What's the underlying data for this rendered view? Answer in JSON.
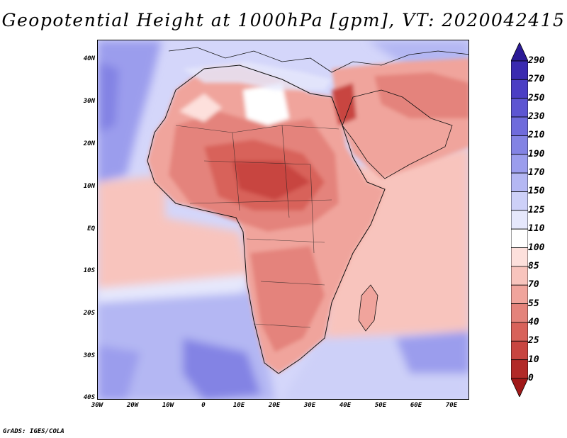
{
  "title": "Geopotential Height at 1000hPa [gpm], VT: 2020042415",
  "credit": "GrADS: IGES/COLA",
  "map": {
    "lon_range": [
      -30,
      75
    ],
    "lat_range": [
      -40,
      45
    ],
    "lat_labels": [
      "40N",
      "30N",
      "20N",
      "10N",
      "EQ",
      "10S",
      "20S",
      "30S",
      "40S"
    ],
    "lon_labels": [
      "30W",
      "20W",
      "10W",
      "0",
      "10E",
      "20E",
      "30E",
      "40E",
      "50E",
      "60E",
      "70E"
    ],
    "regions": {
      "ocean_north_atlantic": "light blue-violet",
      "africa_interior": "red (low heights)",
      "southern_ocean": "blue-violet (high heights)",
      "indian_ocean": "pink"
    }
  },
  "colorbar": {
    "levels": [
      "290",
      "270",
      "250",
      "230",
      "210",
      "190",
      "170",
      "150",
      "125",
      "110",
      "100",
      "85",
      "70",
      "55",
      "40",
      "25",
      "10",
      "0"
    ],
    "colors": [
      "#2b1a96",
      "#3a2ab0",
      "#4b3ec4",
      "#5d55d2",
      "#6f6bdc",
      "#8383e4",
      "#9b9ded",
      "#b4b7f3",
      "#cdd0f8",
      "#e6e8fc",
      "#ffffff",
      "#fde0dc",
      "#f8c4bd",
      "#f0a49c",
      "#e4837b",
      "#d8625a",
      "#c84540",
      "#b22a28",
      "#a01818"
    ]
  }
}
